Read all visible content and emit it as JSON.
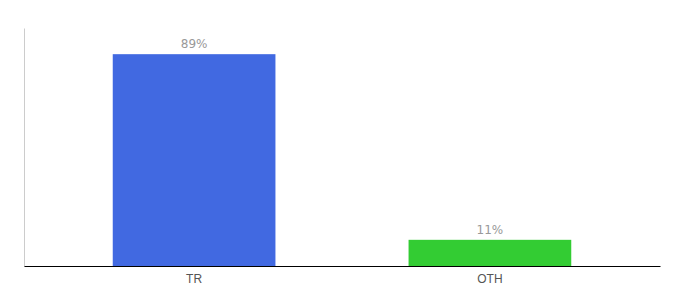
{
  "chart_data": {
    "type": "bar",
    "categories": [
      "TR",
      "OTH"
    ],
    "values": [
      89,
      11
    ],
    "value_labels": [
      "89%",
      "11%"
    ],
    "colors": [
      "#4169e1",
      "#33cc33"
    ],
    "ylim": [
      0,
      100
    ],
    "data_labels": true,
    "tick_labels": "x"
  }
}
